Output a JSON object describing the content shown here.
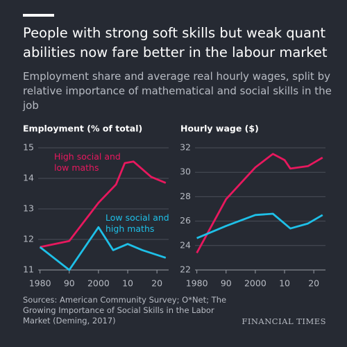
{
  "title": "People with strong soft skills but weak quant abilities now fare better in the labour market",
  "subtitle": "Employment share and average real hourly wages, split by relative importance of mathematical and social skills in the job",
  "source": "Sources: American Community Survey; O*Net; The Growing Importance of Social Skills in the Labor Market (Deming, 2017)",
  "brand": "FINANCIAL TIMES",
  "chart_data": [
    {
      "type": "line",
      "title": "Employment (% of total)",
      "xlim": [
        1977,
        2024
      ],
      "ylim": [
        11,
        15
      ],
      "yticks": [
        11,
        12,
        13,
        14,
        15
      ],
      "xticks": [
        1980,
        {
          "value": 1990,
          "label": "90"
        },
        2000,
        {
          "value": 2010,
          "label": "10"
        },
        {
          "value": 2020,
          "label": "20"
        }
      ],
      "grid": true,
      "series": [
        {
          "name": "High social and low maths",
          "color": "#e8185e",
          "x": [
            1980,
            1990,
            2000,
            2006,
            2009,
            2012,
            2018,
            2023
          ],
          "values": [
            11.75,
            11.95,
            13.2,
            13.8,
            14.5,
            14.55,
            14.05,
            13.85
          ]
        },
        {
          "name": "Low social and high maths",
          "color": "#1ec0e8",
          "x": [
            1980,
            1990,
            2000,
            2005,
            2010,
            2015,
            2023
          ],
          "values": [
            11.75,
            11.0,
            12.4,
            11.65,
            11.85,
            11.65,
            11.4
          ]
        }
      ]
    },
    {
      "type": "line",
      "title": "Hourly wage ($)",
      "xlim": [
        1977,
        2024
      ],
      "ylim": [
        22,
        32
      ],
      "yticks": [
        22,
        24,
        26,
        28,
        30,
        32
      ],
      "xticks": [
        1980,
        {
          "value": 1990,
          "label": "90"
        },
        2000,
        {
          "value": 2010,
          "label": "10"
        },
        {
          "value": 2020,
          "label": "20"
        }
      ],
      "grid": true,
      "series": [
        {
          "color": "#e8185e",
          "x": [
            1980,
            1990,
            2000,
            2006,
            2010,
            2012,
            2018,
            2023
          ],
          "values": [
            23.4,
            27.8,
            30.4,
            31.5,
            31.0,
            30.3,
            30.5,
            31.2
          ]
        },
        {
          "color": "#1ec0e8",
          "x": [
            1980,
            1990,
            2000,
            2006,
            2012,
            2018,
            2023
          ],
          "values": [
            24.6,
            25.6,
            26.5,
            26.6,
            25.4,
            25.8,
            26.5
          ]
        }
      ]
    }
  ]
}
